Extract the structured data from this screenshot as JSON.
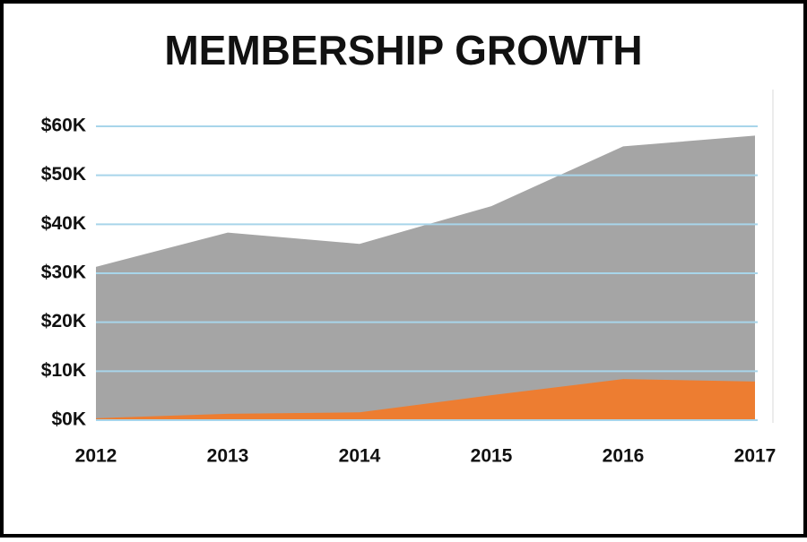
{
  "chart_data": {
    "type": "area",
    "title": "MEMBERSHIP GROWTH",
    "categories": [
      "2012",
      "2013",
      "2014",
      "2015",
      "2016",
      "2017"
    ],
    "series": [
      {
        "color": "#a5a5a5",
        "values": [
          31300,
          38300,
          36000,
          43700,
          55900,
          58100
        ]
      },
      {
        "color": "#ed7d31",
        "values": [
          400,
          1300,
          1600,
          5100,
          8400,
          7900
        ]
      }
    ],
    "ylim": [
      0,
      60000
    ],
    "yticks": [
      {
        "value": 0,
        "label": "$0K"
      },
      {
        "value": 10000,
        "label": "$10K"
      },
      {
        "value": 20000,
        "label": "$20K"
      },
      {
        "value": 30000,
        "label": "$30K"
      },
      {
        "value": 40000,
        "label": "$40K"
      },
      {
        "value": 50000,
        "label": "$50K"
      },
      {
        "value": 60000,
        "label": "$60K"
      }
    ],
    "grid": true,
    "grid_color": "#a8d5ea"
  }
}
